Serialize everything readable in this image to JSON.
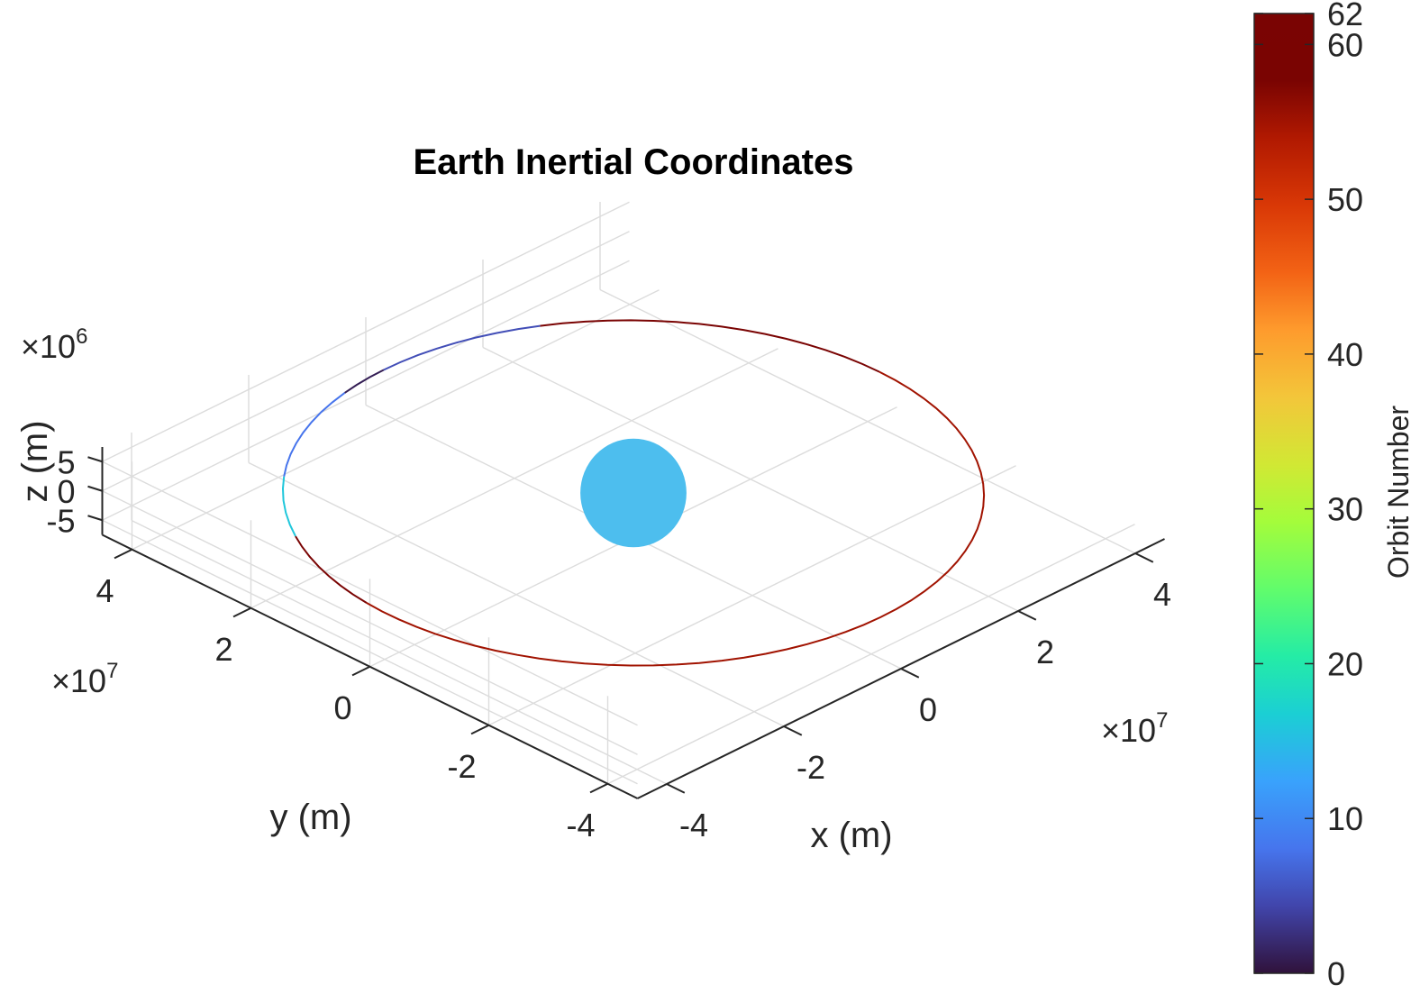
{
  "chart_data": {
    "type": "line3d",
    "title": "Earth Inertial Coordinates",
    "xlabel": "x (m)",
    "ylabel": "y (m)",
    "zlabel": "z (m)",
    "xlim": [
      -45000000.0,
      45000000.0
    ],
    "ylim": [
      -45000000.0,
      45000000.0
    ],
    "zlim": [
      -7500000.0,
      7500000.0
    ],
    "x_ticks": [
      "-4",
      "-2",
      "0",
      "2",
      "4"
    ],
    "y_ticks": [
      "-4",
      "-2",
      "0",
      "2",
      "4"
    ],
    "z_ticks": [
      "-5",
      "0",
      "5"
    ],
    "x_multiplier": "×10",
    "x_multiplier_exp": "7",
    "y_multiplier": "×10",
    "y_multiplier_exp": "7",
    "z_multiplier": "×10",
    "z_multiplier_exp": "6",
    "grid": true,
    "orbit": {
      "radius": 42000000.0,
      "z_amplitude": 0,
      "description_points": 96
    },
    "earth": {
      "radius": 6400000.0,
      "color": "#4dbeee"
    },
    "colormap": "turbo",
    "colorbar": {
      "label": "Orbit Number",
      "ticks": [
        "0",
        "10",
        "20",
        "30",
        "40",
        "50",
        "60",
        "62"
      ],
      "tick_values": [
        0,
        10,
        20,
        30,
        40,
        50,
        60,
        62
      ],
      "range": [
        0,
        62
      ]
    },
    "segments": [
      {
        "from_deg": 175,
        "to_deg": 360,
        "orbit_number": 55
      },
      {
        "from_deg": 0,
        "to_deg": 60,
        "orbit_number": 62
      },
      {
        "from_deg": 60,
        "to_deg": 90,
        "orbit_number": 5
      },
      {
        "from_deg": 90,
        "to_deg": 100,
        "orbit_number": 1
      },
      {
        "from_deg": 100,
        "to_deg": 130,
        "orbit_number": 8
      },
      {
        "from_deg": 130,
        "to_deg": 150,
        "orbit_number": 16
      },
      {
        "from_deg": 150,
        "to_deg": 175,
        "orbit_number": 62
      }
    ]
  }
}
